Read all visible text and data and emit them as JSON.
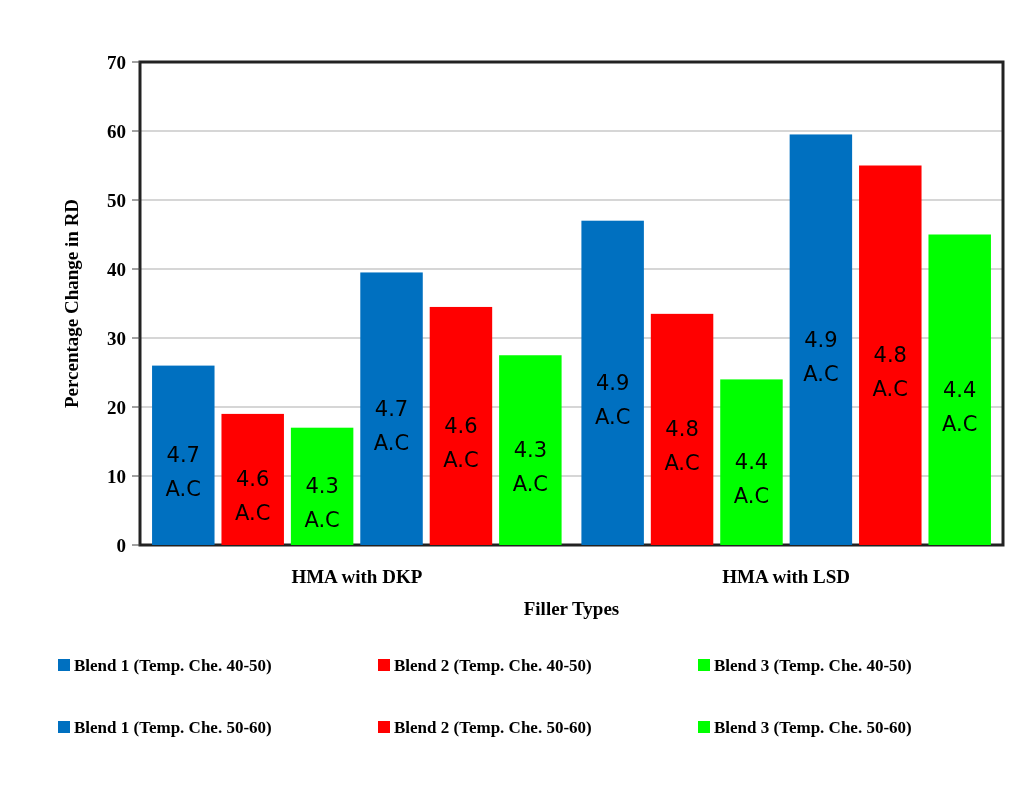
{
  "chart_data": {
    "type": "bar",
    "xlabel": "Filler Types",
    "ylabel": "Percentage Change in RD",
    "categories": [
      "HMA with DKP",
      "HMA with LSD"
    ],
    "series": [
      {
        "name": "Blend 1 (Temp. Che. 40-50)",
        "color": "#0070c0",
        "values": [
          26,
          47
        ]
      },
      {
        "name": "Blend 2 (Temp. Che. 40-50)",
        "color": "#ff0000",
        "values": [
          19,
          33.5
        ]
      },
      {
        "name": "Blend 3 (Temp. Che. 40-50)",
        "color": "#00ff00",
        "values": [
          17,
          24
        ]
      },
      {
        "name": "Blend 1 (Temp. Che. 50-60)",
        "color": "#0070c0",
        "values": [
          39.5,
          59.5
        ]
      },
      {
        "name": "Blend 2 (Temp. Che. 50-60)",
        "color": "#ff0000",
        "values": [
          34.5,
          55
        ]
      },
      {
        "name": "Blend 3 (Temp. Che. 50-60)",
        "color": "#00ff00",
        "values": [
          27.5,
          45
        ]
      }
    ],
    "annotations": [
      "4.7 A.C",
      "4.6 A.C",
      "4.3 A.C",
      "4.7 A.C",
      "4.6 A.C",
      "4.3 A.C",
      "4.9 A.C",
      "4.8 A.C",
      "4.4 A.C",
      "4.9 A.C",
      "4.8 A.C",
      "4.4 A.C"
    ],
    "ylim": [
      0,
      70
    ],
    "yticks": [
      0,
      10,
      20,
      30,
      40,
      50,
      60,
      70
    ],
    "grid": "y",
    "legend": "bottom"
  }
}
